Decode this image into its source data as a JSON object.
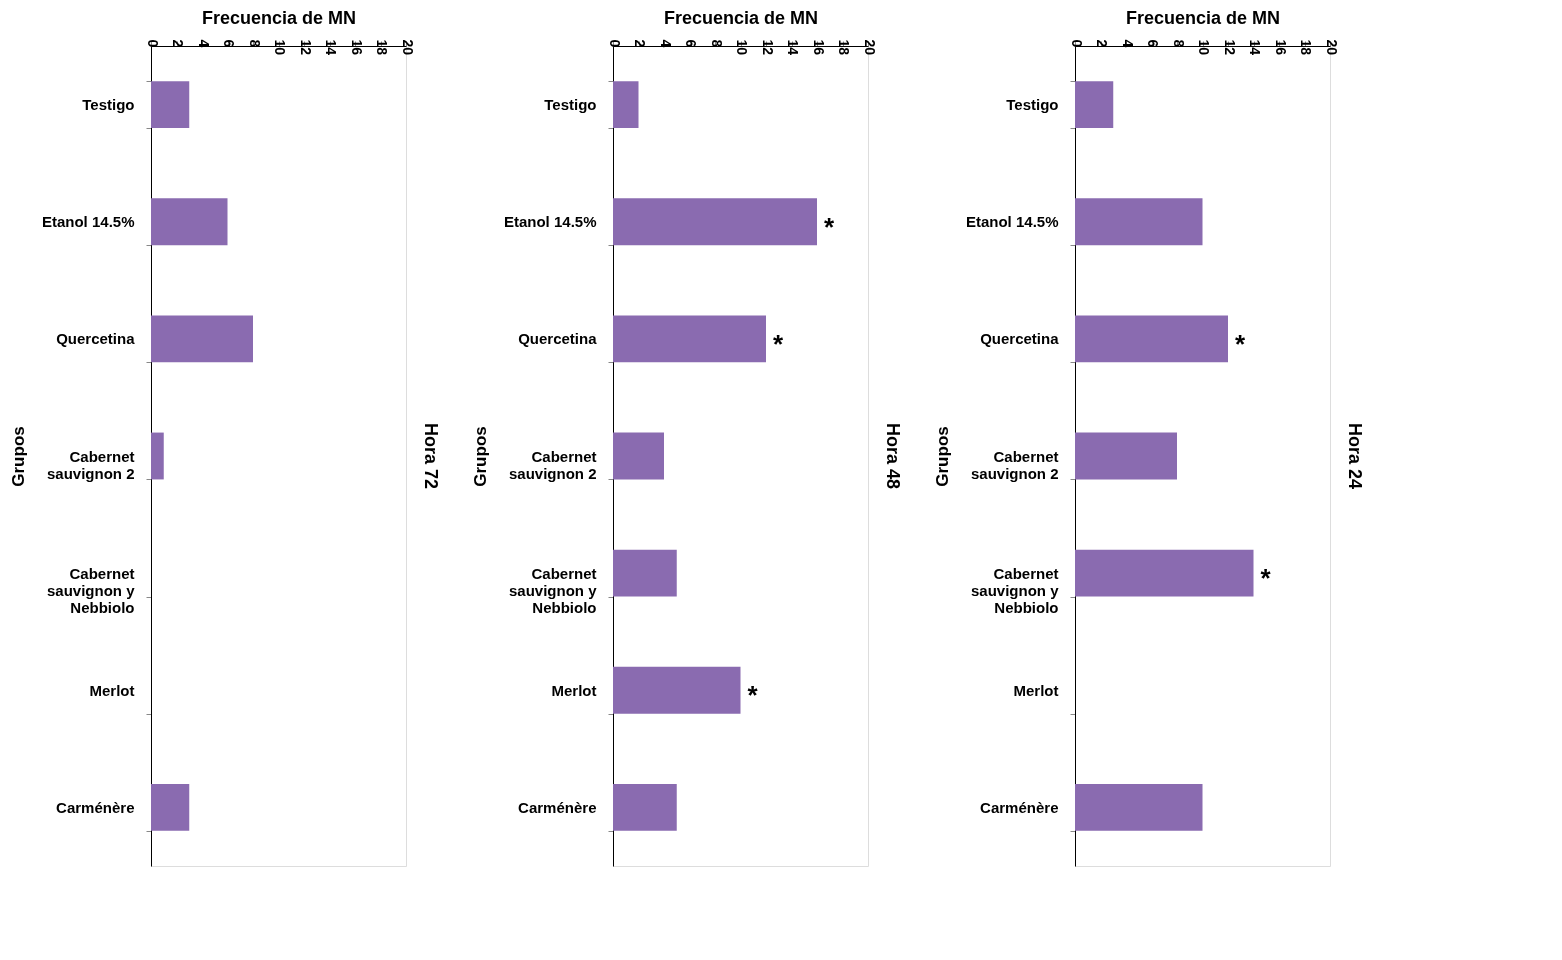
{
  "chart_data": [
    {
      "type": "bar",
      "orientation": "horizontal",
      "title": "Hora 72",
      "xlabel": "Frecuencia de MN",
      "ylabel": "Grupos",
      "categories": [
        "Testigo",
        "Etanol 14.5%",
        "Quercetina",
        "Cabernet sauvignon 2",
        "Cabernet sauvignon y Nebbiolo",
        "Merlot",
        "Carménère"
      ],
      "values": [
        3,
        6,
        8,
        1,
        0,
        0,
        3
      ],
      "color": "#8a6bb0",
      "xlim": [
        0,
        20
      ],
      "xticks": [
        0,
        2,
        4,
        6,
        8,
        10,
        12,
        14,
        16,
        18,
        20
      ],
      "grid": false
    },
    {
      "type": "bar",
      "orientation": "horizontal",
      "title": "Hora 48",
      "xlabel": "Frecuencia de MN",
      "ylabel": "Grupos",
      "categories": [
        "Testigo",
        "Etanol 14.5%",
        "Quercetina",
        "Cabernet sauvignon 2",
        "Cabernet sauvignon y Nebbiolo",
        "Merlot",
        "Carménère"
      ],
      "values": [
        2,
        16,
        12,
        4,
        5,
        10,
        5
      ],
      "color": "#8a6bb0",
      "xlim": [
        0,
        20
      ],
      "xticks": [
        0,
        2,
        4,
        6,
        8,
        10,
        12,
        14,
        16,
        18,
        20
      ],
      "grid": false,
      "annotations": [
        {
          "text": "*",
          "x": 16,
          "y": "Etanol 14.5%"
        },
        {
          "text": "*",
          "x": 12,
          "y": "Quercetina"
        },
        {
          "text": "*",
          "x": 10,
          "y": "Merlot"
        }
      ]
    },
    {
      "type": "bar",
      "orientation": "horizontal",
      "title": "Hora 24",
      "xlabel": "Frecuencia de MN",
      "ylabel": "Grupos",
      "categories": [
        "Testigo",
        "Etanol 14.5%",
        "Quercetina",
        "Cabernet sauvignon 2",
        "Cabernet sauvignon y Nebbiolo",
        "Merlot",
        "Carménère"
      ],
      "values": [
        3,
        10,
        12,
        8,
        14,
        0,
        10
      ],
      "color": "#8a6bb0",
      "xlim": [
        0,
        20
      ],
      "xticks": [
        0,
        2,
        4,
        6,
        8,
        10,
        12,
        14,
        16,
        18,
        20
      ],
      "grid": false,
      "annotations": [
        {
          "text": "*",
          "x": 12,
          "y": "Quercetina"
        },
        {
          "text": "*",
          "x": 14,
          "y": "Cabernet sauvignon y Nebbiolo"
        }
      ]
    }
  ]
}
